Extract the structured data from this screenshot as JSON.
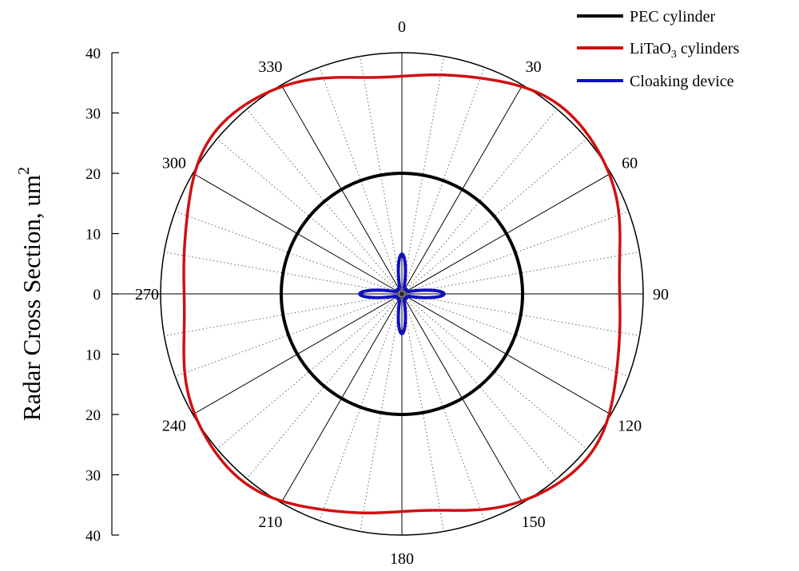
{
  "chart_data": {
    "type": "polar-line",
    "ylabel_text": "Radar Cross Section, um",
    "ylabel_sup": "2",
    "r_max": 40,
    "r_ticks_upper": [
      "40",
      "30",
      "20",
      "10",
      "0"
    ],
    "r_ticks_lower": [
      "10",
      "20",
      "30",
      "40"
    ],
    "angle_labels": [
      "0",
      "30",
      "60",
      "90",
      "120",
      "150",
      "180",
      "210",
      "240",
      "270",
      "300",
      "330"
    ],
    "grid": "solid radial spokes every 30°, dotted every 10°",
    "legend_position": "top-right",
    "series": [
      {
        "name": "PEC cylinder",
        "color": "#000000",
        "shape": "constant",
        "radius": 20
      },
      {
        "name_main": "LiTaO",
        "name_sub": "3",
        "name_rest": " cylinders",
        "color": "#d01010",
        "shape": "squircle",
        "base": 38.5,
        "depth": 2.4,
        "radius_at_0": 36,
        "radius_at_45": 38.8,
        "radius_at_90": 36
      },
      {
        "name": "Cloaking device",
        "color": "#1010c0",
        "shape": "four-lobe",
        "petal_min": 1.0,
        "petal_max": 7.0,
        "lobe_peak_0": 6.5,
        "lobe_peak_90": 6.8,
        "lobe_peak_180": 6.5,
        "lobe_peak_270": 6.8
      }
    ]
  }
}
